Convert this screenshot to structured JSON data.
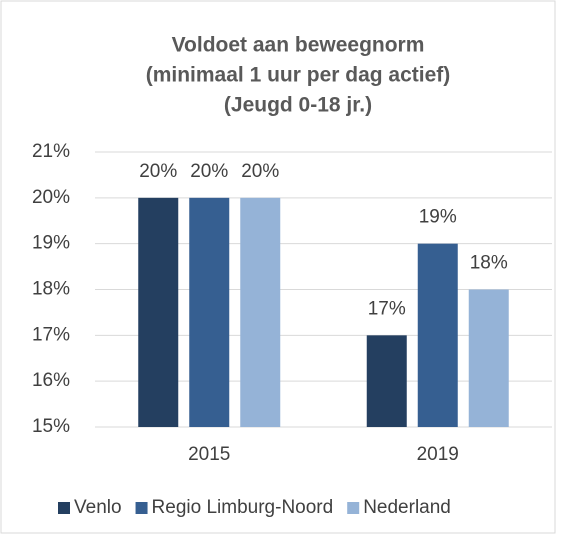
{
  "chart_data": {
    "type": "bar",
    "title": [
      "Voldoet aan beweegnorm",
      "(minimaal 1 uur per dag actief)",
      "(Jeugd 0-18 jr.)"
    ],
    "categories": [
      "2015",
      "2019"
    ],
    "series": [
      {
        "name": "Venlo",
        "color": "#243f60",
        "values": [
          20,
          17
        ],
        "value_labels": [
          "20%",
          "17%"
        ]
      },
      {
        "name": "Regio Limburg-Noord",
        "color": "#365f91",
        "values": [
          20,
          19
        ],
        "value_labels": [
          "20%",
          "19%"
        ]
      },
      {
        "name": "Nederland",
        "color": "#95b3d7",
        "values": [
          20,
          18
        ],
        "value_labels": [
          "20%",
          "18%"
        ]
      }
    ],
    "ylim": [
      15,
      21
    ],
    "yticks": [
      {
        "value": 15,
        "label": "15%"
      },
      {
        "value": 16,
        "label": "16%"
      },
      {
        "value": 17,
        "label": "17%"
      },
      {
        "value": 18,
        "label": "18%"
      },
      {
        "value": 19,
        "label": "19%"
      },
      {
        "value": 20,
        "label": "20%"
      },
      {
        "value": 21,
        "label": "21%"
      }
    ],
    "grid": true,
    "legend": "bottom"
  }
}
